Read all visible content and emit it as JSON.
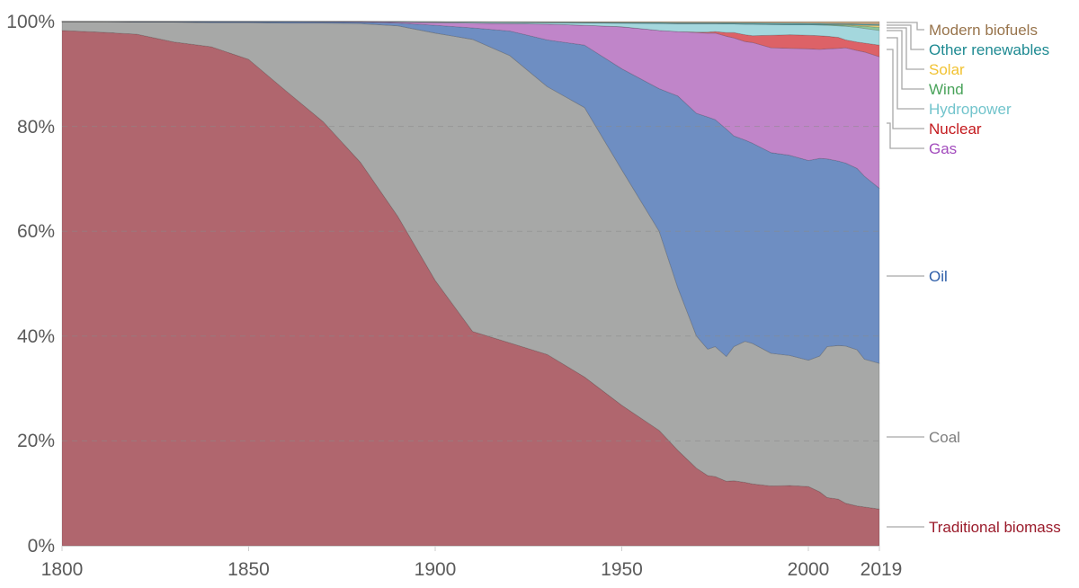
{
  "chart_data": {
    "type": "area",
    "stacked": true,
    "normalized": true,
    "title": "",
    "xlabel": "",
    "ylabel": "",
    "xlim": [
      1800,
      2019
    ],
    "ylim": [
      0,
      100
    ],
    "x_ticks": [
      "1800",
      "1850",
      "1900",
      "1950",
      "2000",
      "2019"
    ],
    "y_ticks": [
      "0%",
      "20%",
      "40%",
      "60%",
      "80%",
      "100%"
    ],
    "grid": "horizontal dashed",
    "legend_position": "right, inline labels",
    "series_order_bottom_to_top": [
      "Traditional biomass",
      "Coal",
      "Oil",
      "Gas",
      "Nuclear",
      "Hydropower",
      "Wind",
      "Solar",
      "Other renewables",
      "Modern biofuels"
    ],
    "x": [
      1800,
      1810,
      1820,
      1830,
      1840,
      1850,
      1860,
      1870,
      1880,
      1890,
      1900,
      1910,
      1920,
      1930,
      1940,
      1950,
      1960,
      1965,
      1970,
      1973,
      1975,
      1978,
      1980,
      1983,
      1985,
      1990,
      1995,
      2000,
      2003,
      2005,
      2008,
      2010,
      2013,
      2015,
      2019
    ],
    "cumulative_tops": {
      "Traditional biomass": [
        98.3,
        98.0,
        97.6,
        96.1,
        95.2,
        92.8,
        86.8,
        80.9,
        73.1,
        62.8,
        50.6,
        40.9,
        38.7,
        36.5,
        32.2,
        26.8,
        22.0,
        18.2,
        14.8,
        13.4,
        13.2,
        12.3,
        12.4,
        12.1,
        11.8,
        11.4,
        11.5,
        11.3,
        10.3,
        9.2,
        8.9,
        8.1,
        7.6,
        7.4,
        7.0
      ],
      "Coal": [
        100,
        100,
        99.9,
        99.9,
        99.8,
        99.8,
        99.7,
        99.7,
        99.6,
        99.2,
        97.8,
        96.6,
        93.5,
        87.6,
        83.6,
        71.7,
        60.0,
        49.2,
        40.0,
        37.5,
        38.0,
        36.1,
        38.0,
        39.0,
        38.6,
        36.7,
        36.3,
        35.4,
        36.2,
        38.0,
        38.2,
        38.1,
        37.4,
        35.6,
        34.8
      ],
      "Oil": [
        100,
        100,
        100,
        100,
        100,
        100,
        100,
        99.95,
        99.9,
        99.7,
        99.3,
        98.8,
        98.2,
        96.5,
        95.5,
        91.0,
        87.2,
        85.8,
        82.5,
        81.8,
        81.3,
        79.5,
        78.2,
        77.4,
        76.8,
        75.0,
        74.5,
        73.5,
        73.9,
        73.8,
        73.4,
        73.0,
        72.0,
        70.5,
        68.2
      ],
      "Gas": [
        100,
        100,
        100,
        100,
        100,
        100,
        100,
        100,
        100,
        99.9,
        99.8,
        99.7,
        99.6,
        99.5,
        99.3,
        99.0,
        98.3,
        98.1,
        97.9,
        97.8,
        97.8,
        97.2,
        96.9,
        96.2,
        96.0,
        95.0,
        94.9,
        94.8,
        94.7,
        94.8,
        94.9,
        95.0,
        94.5,
        94.2,
        93.3
      ],
      "Nuclear": [
        100,
        100,
        100,
        100,
        100,
        100,
        100,
        100,
        100,
        99.9,
        99.8,
        99.7,
        99.6,
        99.5,
        99.3,
        99.0,
        98.3,
        98.1,
        98.0,
        98.0,
        98.1,
        97.9,
        97.9,
        97.5,
        97.3,
        97.4,
        97.5,
        97.4,
        97.3,
        97.2,
        97.0,
        96.5,
        96.1,
        95.9,
        95.5
      ],
      "Hydropower": [
        100,
        100,
        100,
        100,
        100,
        100,
        100,
        100,
        100,
        100,
        99.95,
        99.9,
        99.85,
        99.8,
        99.75,
        99.7,
        99.65,
        99.6,
        99.6,
        99.6,
        99.6,
        99.55,
        99.55,
        99.5,
        99.5,
        99.45,
        99.4,
        99.4,
        99.35,
        99.3,
        99.2,
        99.1,
        98.9,
        98.7,
        98.3
      ],
      "Wind": [
        100,
        100,
        100,
        100,
        100,
        100,
        100,
        100,
        100,
        100,
        99.95,
        99.9,
        99.85,
        99.8,
        99.75,
        99.7,
        99.65,
        99.6,
        99.6,
        99.6,
        99.6,
        99.55,
        99.55,
        99.5,
        99.5,
        99.45,
        99.4,
        99.4,
        99.4,
        99.4,
        99.35,
        99.3,
        99.2,
        99.1,
        98.9
      ],
      "Solar": [
        100,
        100,
        100,
        100,
        100,
        100,
        100,
        100,
        100,
        100,
        99.95,
        99.9,
        99.85,
        99.8,
        99.75,
        99.7,
        99.65,
        99.6,
        99.6,
        99.6,
        99.6,
        99.55,
        99.55,
        99.5,
        99.5,
        99.45,
        99.4,
        99.4,
        99.4,
        99.4,
        99.4,
        99.4,
        99.35,
        99.3,
        99.25
      ],
      "Other renewables": [
        100,
        100,
        100,
        100,
        100,
        100,
        100,
        100,
        100,
        100,
        99.97,
        99.95,
        99.92,
        99.9,
        99.88,
        99.85,
        99.82,
        99.8,
        99.8,
        99.8,
        99.8,
        99.78,
        99.77,
        99.75,
        99.74,
        99.72,
        99.7,
        99.68,
        99.65,
        99.62,
        99.6,
        99.58,
        99.55,
        99.5,
        99.45
      ],
      "Modern biofuels": [
        100,
        100,
        100,
        100,
        100,
        100,
        100,
        100,
        100,
        100,
        100,
        100,
        100,
        100,
        100,
        100,
        100,
        100,
        100,
        100,
        100,
        100,
        100,
        100,
        100,
        100,
        100,
        100,
        100,
        100,
        100,
        100,
        100,
        100,
        100
      ]
    },
    "series_2019_share_pct": {
      "Traditional biomass": 7.0,
      "Coal": 27.8,
      "Oil": 33.4,
      "Gas": 25.1,
      "Nuclear": 2.2,
      "Hydropower": 2.8,
      "Wind": 0.6,
      "Solar": 0.35,
      "Other renewables": 0.2,
      "Modern biofuels": 0.55
    },
    "colors": {
      "Traditional biomass": "#b0666e",
      "Coal": "#a7a8a7",
      "Oil": "#6e8ec2",
      "Gas": "#c085c9",
      "Nuclear": "#dd6267",
      "Hydropower": "#a4d7dd",
      "Wind": "#8cc69a",
      "Solar": "#f2d37a",
      "Other renewables": "#5aa7ad",
      "Modern biofuels": "#bfa584"
    },
    "label_colors": {
      "Traditional biomass": "#9a1a2a",
      "Coal": "#7d7d7d",
      "Oil": "#2c5da8",
      "Gas": "#a34cbd",
      "Nuclear": "#c41a1e",
      "Hydropower": "#72c4cc",
      "Wind": "#49a35a",
      "Solar": "#f1c232",
      "Other renewables": "#1e8a92",
      "Modern biofuels": "#98744c"
    }
  },
  "axes": {
    "y_labels": [
      "100%",
      "80%",
      "60%",
      "40%",
      "20%",
      "0%"
    ],
    "x_labels": [
      "1800",
      "1850",
      "1900",
      "1950",
      "2000",
      "2019"
    ]
  },
  "legend": {
    "modern_biofuels": "Modern biofuels",
    "other_renewables": "Other renewables",
    "solar": "Solar",
    "wind": "Wind",
    "hydropower": "Hydropower",
    "nuclear": "Nuclear",
    "gas": "Gas",
    "oil": "Oil",
    "coal": "Coal",
    "traditional_biomass": "Traditional biomass"
  }
}
